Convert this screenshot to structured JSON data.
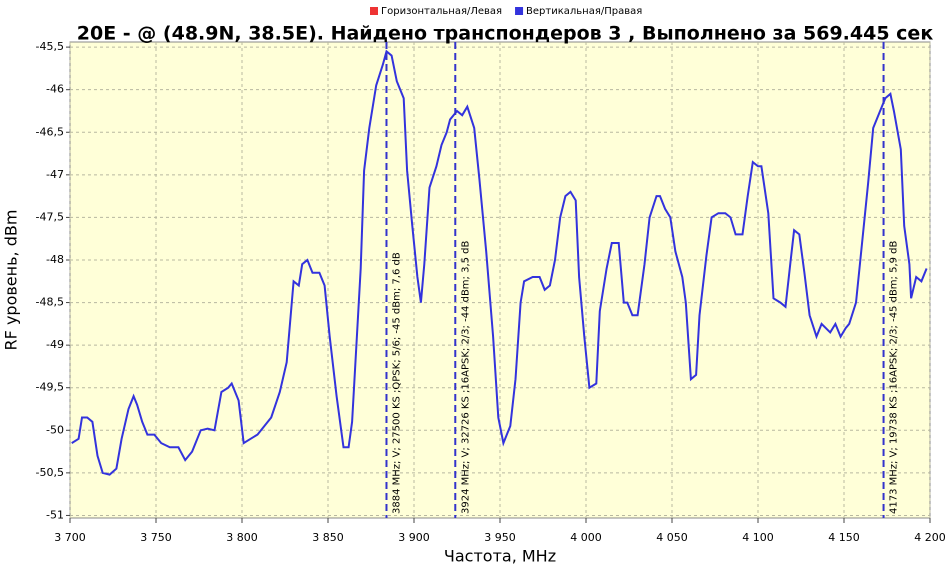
{
  "chart_data": {
    "type": "line",
    "title": "20E -  @  (48.9N, 38.5E). Найдено транспондеров 3 , Выполнено за 569.445 сек",
    "xlabel": "Частота, MHz",
    "ylabel": "RF уровень, dBm",
    "xlim": [
      3700,
      4200
    ],
    "ylim": [
      -51.03,
      -45.44
    ],
    "grid": true,
    "legend": "top",
    "xticks": [
      {
        "value": 3700,
        "label": "3 700"
      },
      {
        "value": 3750,
        "label": "3 750"
      },
      {
        "value": 3800,
        "label": "3 800"
      },
      {
        "value": 3850,
        "label": "3 850"
      },
      {
        "value": 3900,
        "label": "3 900"
      },
      {
        "value": 3950,
        "label": "3 950"
      },
      {
        "value": 4000,
        "label": "4 000"
      },
      {
        "value": 4050,
        "label": "4 050"
      },
      {
        "value": 4100,
        "label": "4 100"
      },
      {
        "value": 4150,
        "label": "4 150"
      },
      {
        "value": 4200,
        "label": "4 200"
      }
    ],
    "yticks": [
      {
        "value": -45.5,
        "label": "-45,5"
      },
      -46,
      {
        "value": -46.5,
        "label": "-46,5"
      },
      -47,
      {
        "value": -47.5,
        "label": "-47,5"
      },
      -48,
      {
        "value": -48.5,
        "label": "-48,5"
      },
      -49,
      {
        "value": -49.5,
        "label": "-49,5"
      },
      -50,
      {
        "value": -50.5,
        "label": "-50,5"
      },
      -51
    ],
    "series": [
      {
        "name": "Горизонтальная/Левая",
        "color": "#ee3333",
        "x": [],
        "values": []
      },
      {
        "name": "Вертикальная/Правая",
        "color": "#3333dd",
        "x": [
          3701,
          3705,
          3707,
          3710,
          3713,
          3716,
          3719,
          3723,
          3727,
          3730,
          3734,
          3737,
          3739,
          3742,
          3745,
          3749,
          3753,
          3758,
          3763,
          3767,
          3771,
          3776,
          3780,
          3784,
          3788,
          3792,
          3794,
          3798,
          3801,
          3805,
          3809,
          3813,
          3817,
          3822,
          3826,
          3830,
          3833,
          3835,
          3838,
          3841,
          3845,
          3848,
          3851,
          3855,
          3859,
          3862,
          3864,
          3869,
          3871,
          3874,
          3878,
          3882,
          3884,
          3887,
          3890,
          3894,
          3896,
          3899,
          3902,
          3904,
          3906,
          3909,
          3913,
          3916,
          3919,
          3921,
          3925,
          3928,
          3931,
          3935,
          3938,
          3942,
          3946,
          3949,
          3952,
          3956,
          3959,
          3962,
          3964,
          3969,
          3973,
          3976,
          3979,
          3982,
          3985,
          3988,
          3991,
          3994,
          3996,
          3999,
          4002,
          4006,
          4008,
          4012,
          4015,
          4019,
          4022,
          4024,
          4027,
          4030,
          4034,
          4037,
          4041,
          4043,
          4046,
          4049,
          4052,
          4056,
          4058,
          4061,
          4064,
          4066,
          4070,
          4073,
          4077,
          4081,
          4084,
          4087,
          4091,
          4094,
          4097,
          4100,
          4102,
          4106,
          4109,
          4113,
          4116,
          4119,
          4121,
          4124,
          4127,
          4130,
          4134,
          4137,
          4142,
          4145,
          4148,
          4151,
          4153,
          4157,
          4160,
          4164,
          4167,
          4171,
          4174,
          4177,
          4179,
          4183,
          4185,
          4188,
          4189,
          4192,
          4195,
          4198
        ],
        "values": [
          -50.15,
          -50.1,
          -49.85,
          -49.85,
          -49.9,
          -50.3,
          -50.5,
          -50.52,
          -50.45,
          -50.1,
          -49.75,
          -49.6,
          -49.7,
          -49.9,
          -50.05,
          -50.05,
          -50.15,
          -50.2,
          -50.2,
          -50.35,
          -50.25,
          -50.0,
          -49.98,
          -50.0,
          -49.55,
          -49.5,
          -49.45,
          -49.65,
          -50.15,
          -50.1,
          -50.05,
          -49.95,
          -49.85,
          -49.55,
          -49.2,
          -48.25,
          -48.3,
          -48.05,
          -48.0,
          -48.15,
          -48.15,
          -48.3,
          -48.9,
          -49.6,
          -50.2,
          -50.2,
          -49.9,
          -48.1,
          -46.95,
          -46.45,
          -45.95,
          -45.7,
          -45.55,
          -45.6,
          -45.9,
          -46.1,
          -46.95,
          -47.6,
          -48.2,
          -48.5,
          -48.05,
          -47.15,
          -46.9,
          -46.65,
          -46.5,
          -46.35,
          -46.25,
          -46.3,
          -46.2,
          -46.45,
          -47.05,
          -47.9,
          -48.9,
          -49.85,
          -50.15,
          -49.95,
          -49.4,
          -48.5,
          -48.25,
          -48.2,
          -48.2,
          -48.35,
          -48.3,
          -48.0,
          -47.5,
          -47.25,
          -47.2,
          -47.3,
          -48.2,
          -48.9,
          -49.5,
          -49.45,
          -48.6,
          -48.1,
          -47.8,
          -47.8,
          -48.5,
          -48.5,
          -48.65,
          -48.65,
          -48.05,
          -47.5,
          -47.25,
          -47.25,
          -47.4,
          -47.5,
          -47.9,
          -48.2,
          -48.5,
          -49.4,
          -49.35,
          -48.65,
          -47.95,
          -47.5,
          -47.45,
          -47.45,
          -47.5,
          -47.7,
          -47.7,
          -47.25,
          -46.85,
          -46.9,
          -46.9,
          -47.45,
          -48.45,
          -48.5,
          -48.55,
          -48.0,
          -47.65,
          -47.7,
          -48.15,
          -48.65,
          -48.9,
          -48.75,
          -48.85,
          -48.75,
          -48.9,
          -48.8,
          -48.75,
          -48.5,
          -47.9,
          -47.1,
          -46.45,
          -46.25,
          -46.1,
          -46.05,
          -46.25,
          -46.7,
          -47.6,
          -48.05,
          -48.45,
          -48.2,
          -48.25,
          -48.1
        ]
      }
    ],
    "markers": [
      {
        "x": 3884,
        "label": "3884 MHz; V; 27500 KS ;QPSK; 5/6; -45 dBm; 7,6 dB"
      },
      {
        "x": 3924,
        "label": "3924 MHz; V; 32726 KS ;16APSK; 2/3; -44 dBm; 3,5 dB"
      },
      {
        "x": 4173,
        "label": "4173 MHz; V; 19738 KS ;16APSK; 2/3; -45 dBm; 5,9 dB"
      }
    ]
  }
}
